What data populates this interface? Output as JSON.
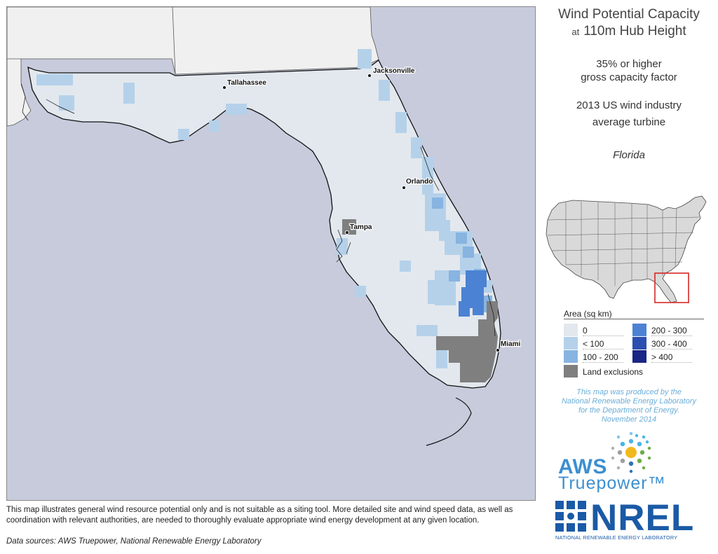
{
  "title": {
    "line1": "Wind Potential Capacity",
    "at": "at",
    "line2": "110m Hub Height"
  },
  "capacity_factor": {
    "line1": "35% or higher",
    "line2": "gross capacity factor"
  },
  "turbine": {
    "line1": "2013 US wind industry",
    "line2": "average turbine"
  },
  "state": "Florida",
  "cities": {
    "jacksonville": "Jacksonville",
    "tallahassee": "Tallahassee",
    "orlando": "Orlando",
    "tampa": "Tampa",
    "miami": "Miami"
  },
  "legend": {
    "title": "Area (sq km)",
    "items": [
      {
        "label": "0",
        "color": "#e2e8ee"
      },
      {
        "label": "< 100",
        "color": "#b5d1ea"
      },
      {
        "label": "100 - 200",
        "color": "#87b4e1"
      },
      {
        "label": "200 - 300",
        "color": "#4c82d3"
      },
      {
        "label": "300 - 400",
        "color": "#2b4fb0"
      },
      {
        "label": "> 400",
        "color": "#1a2585"
      },
      {
        "label": "Land exclusions",
        "color": "#7f7f7f"
      }
    ]
  },
  "credit": {
    "line1": "This map was produced by the",
    "line2": "National Renewable Energy Laboratory",
    "line3": "for the Department of Energy.",
    "line4": "November 2014"
  },
  "logos": {
    "aws": "AWS",
    "aws_sub": "Truepower™",
    "nrel": "NREL",
    "nrel_sub": "NATIONAL RENEWABLE ENERGY LABORATORY"
  },
  "disclaimer": "This map illustrates general wind resource potential only and is not suitable as a siting tool. More detailed site and wind speed data, as well as coordination with relevant authorities, are needed to thoroughly evaluate appropriate wind energy development at any given location.",
  "sources": "Data sources: AWS Truepower, National Renewable Energy Laboratory",
  "colors": {
    "ocean": "#c7cbdc",
    "land_other": "#f0f0f0",
    "florida_base": "#e2e8ee",
    "exclusion": "#7f7f7f",
    "inset_highlight": "#d62728",
    "credit_text": "#6aaed8",
    "aws_blue": "#3d8fd0",
    "nrel_blue": "#1a5aa6"
  }
}
